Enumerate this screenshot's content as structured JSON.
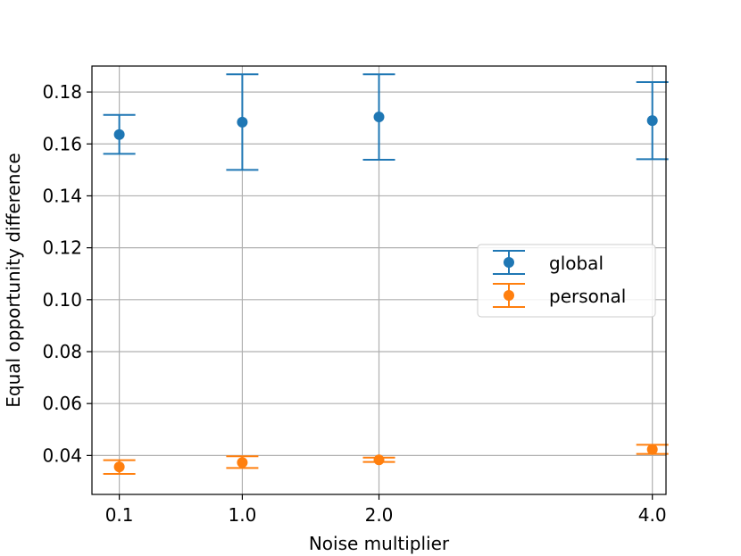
{
  "chart_data": {
    "type": "scatter",
    "xlabel": "Noise multiplier",
    "ylabel": "Equal opportunity difference",
    "x_ticks": [
      "0.1",
      "1.0",
      "2.0",
      "4.0"
    ],
    "y_ticks": [
      "0.04",
      "0.06",
      "0.08",
      "0.10",
      "0.12",
      "0.14",
      "0.16",
      "0.18"
    ],
    "xlim": [
      -0.1,
      4.1
    ],
    "ylim": [
      0.025,
      0.19
    ],
    "grid": true,
    "legend_position": "center-right",
    "series": [
      {
        "name": "global",
        "color": "#1f77b4",
        "x": [
          0.1,
          1.0,
          2.0,
          4.0
        ],
        "y": [
          0.1636,
          0.1684,
          0.1704,
          0.169
        ],
        "err_low": [
          0.1562,
          0.15,
          0.1539,
          0.1541
        ],
        "err_high": [
          0.1712,
          0.1868,
          0.1868,
          0.1838
        ]
      },
      {
        "name": "personal",
        "color": "#ff7f0e",
        "x": [
          0.1,
          1.0,
          2.0,
          4.0
        ],
        "y": [
          0.0356,
          0.0373,
          0.0383,
          0.0423
        ],
        "err_low": [
          0.0329,
          0.0352,
          0.0375,
          0.0406
        ],
        "err_high": [
          0.0382,
          0.0397,
          0.0392,
          0.0441
        ]
      }
    ]
  }
}
